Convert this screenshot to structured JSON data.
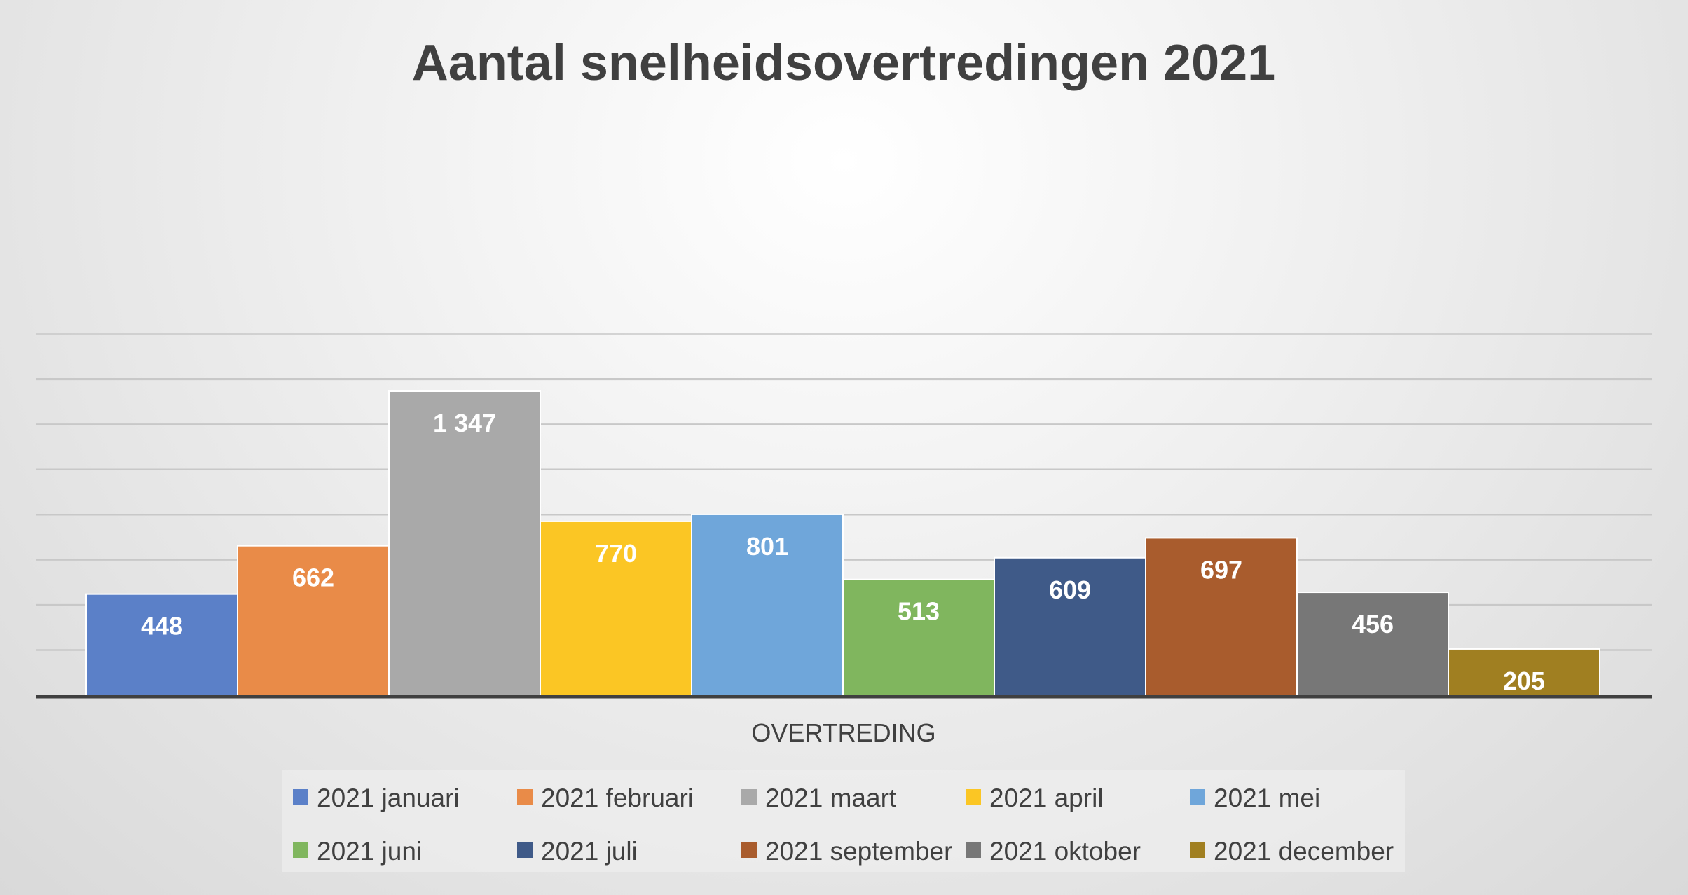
{
  "chart_data": {
    "type": "bar",
    "title": "Aantal snelheidsovertredingen 2021",
    "xlabel": "OVERTREDING",
    "ylabel": "",
    "categories": [
      "OVERTREDING"
    ],
    "ylim": [
      0,
      1600
    ],
    "grid": true,
    "legend_position": "bottom",
    "series": [
      {
        "name": "2021 januari",
        "values": [
          448
        ],
        "label": "448",
        "color": "#5b80c8"
      },
      {
        "name": "2021 februari",
        "values": [
          662
        ],
        "label": "662",
        "color": "#e98b48"
      },
      {
        "name": "2021 maart",
        "values": [
          1347
        ],
        "label": "1 347",
        "color": "#a9a9a9"
      },
      {
        "name": "2021 april",
        "values": [
          770
        ],
        "label": "770",
        "color": "#fbc624"
      },
      {
        "name": "2021 mei",
        "values": [
          801
        ],
        "label": "801",
        "color": "#6fa6da"
      },
      {
        "name": "2021 juni",
        "values": [
          513
        ],
        "label": "513",
        "color": "#80b65e"
      },
      {
        "name": "2021 juli",
        "values": [
          609
        ],
        "label": "609",
        "color": "#3f5a88"
      },
      {
        "name": "2021 september",
        "values": [
          697
        ],
        "label": "697",
        "color": "#a95c2d"
      },
      {
        "name": "2021 oktober",
        "values": [
          456
        ],
        "label": "456",
        "color": "#777777"
      },
      {
        "name": "2021 december",
        "values": [
          205
        ],
        "label": "205",
        "color": "#a07f21"
      }
    ]
  }
}
